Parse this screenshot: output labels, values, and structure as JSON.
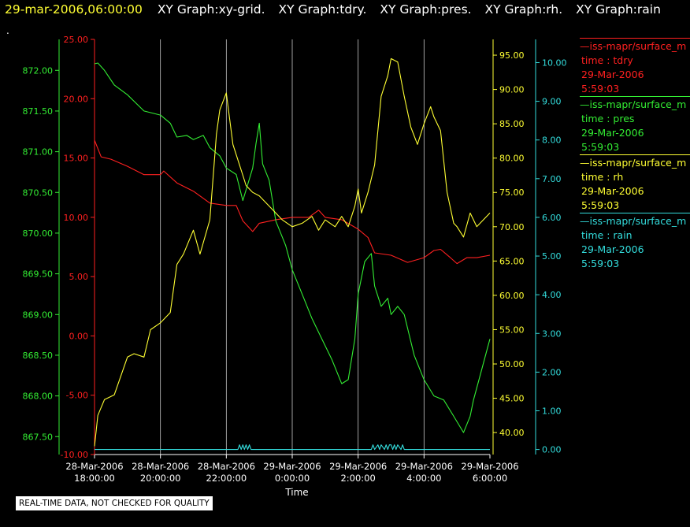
{
  "header": {
    "timestamp": "29-mar-2006,06:00:00",
    "graphs": [
      "XY Graph:xy-grid.",
      "XY Graph:tdry.",
      "XY Graph:pres.",
      "XY Graph:rh.",
      "XY Graph:rain"
    ]
  },
  "dot": ".",
  "legend": [
    {
      "name": "—iss-mapr/surface_m",
      "var": "time : tdry",
      "date": "29-Mar-2006",
      "time": "5:59:03",
      "color": "#ff2020"
    },
    {
      "name": "—iss-mapr/surface_m",
      "var": "time : pres",
      "date": "29-Mar-2006",
      "time": "5:59:03",
      "color": "#33ee33"
    },
    {
      "name": "—iss-mapr/surface_m",
      "var": "time : rh",
      "date": "29-Mar-2006",
      "time": "5:59:03",
      "color": "#ffff33"
    },
    {
      "name": "—iss-mapr/surface_m",
      "var": "time : rain",
      "date": "29-Mar-2006",
      "time": "5:59:03",
      "color": "#33dddd"
    }
  ],
  "note": "REAL-TIME DATA, NOT CHECKED FOR QUALITY",
  "chart_data": {
    "type": "line",
    "xlabel": "Time",
    "x_ticks": [
      {
        "l1": "28-Mar-2006",
        "l2": "18:00:00",
        "h": 18
      },
      {
        "l1": "28-Mar-2006",
        "l2": "20:00:00",
        "h": 20
      },
      {
        "l1": "28-Mar-2006",
        "l2": "22:00:00",
        "h": 22
      },
      {
        "l1": "29-Mar-2006",
        "l2": "0:00:00",
        "h": 24
      },
      {
        "l1": "29-Mar-2006",
        "l2": "2:00:00",
        "h": 26
      },
      {
        "l1": "29-Mar-2006",
        "l2": "4:00:00",
        "h": 28
      },
      {
        "l1": "29-Mar-2006",
        "l2": "6:00:00",
        "h": 30
      }
    ],
    "xlim_hours": [
      18,
      30
    ],
    "grid": true,
    "axes": {
      "tdry": {
        "color": "#ff2020",
        "ylim": [
          -10,
          25
        ],
        "ticks": [
          "-10.00",
          "-5.00",
          "0.00",
          "5.00",
          "10.00",
          "15.00",
          "20.00",
          "25.00"
        ],
        "tick_values": [
          -10,
          -5,
          0,
          5,
          10,
          15,
          20,
          25
        ]
      },
      "pres": {
        "color": "#33ee33",
        "ylim": [
          867.28,
          872.38
        ],
        "ticks": [
          "867.50",
          "868.00",
          "868.50",
          "869.00",
          "869.50",
          "870.00",
          "870.50",
          "871.00",
          "871.50",
          "872.00"
        ],
        "tick_values": [
          867.5,
          868,
          868.5,
          869,
          869.5,
          870,
          870.5,
          871,
          871.5,
          872
        ]
      },
      "rh": {
        "color": "#ffff33",
        "ylim": [
          36.8,
          97.3
        ],
        "ticks": [
          "40.00",
          "45.00",
          "50.00",
          "55.00",
          "60.00",
          "65.00",
          "70.00",
          "75.00",
          "80.00",
          "85.00",
          "90.00",
          "95.00"
        ],
        "tick_values": [
          40,
          45,
          50,
          55,
          60,
          65,
          70,
          75,
          80,
          85,
          90,
          95
        ]
      },
      "rain": {
        "color": "#33dddd",
        "ylim": [
          -0.13,
          10.6
        ],
        "ticks": [
          "0.00",
          "1.00",
          "2.00",
          "3.00",
          "4.00",
          "5.00",
          "6.00",
          "7.00",
          "8.00",
          "9.00",
          "10.00"
        ],
        "tick_values": [
          0,
          1,
          2,
          3,
          4,
          5,
          6,
          7,
          8,
          9,
          10
        ]
      }
    },
    "series": [
      {
        "name": "tdry",
        "axis": "tdry",
        "x": [
          18.0,
          18.2,
          18.5,
          19.0,
          19.5,
          20.0,
          20.1,
          20.5,
          21.0,
          21.5,
          22.0,
          22.3,
          22.5,
          22.8,
          23.0,
          23.5,
          24.0,
          24.5,
          24.8,
          25.0,
          25.5,
          26.0,
          26.3,
          26.5,
          27.0,
          27.5,
          28.0,
          28.3,
          28.5,
          28.8,
          29.0,
          29.3,
          29.6,
          30.0
        ],
        "y": [
          16.5,
          15.1,
          14.9,
          14.3,
          13.6,
          13.6,
          13.9,
          12.9,
          12.2,
          11.2,
          11.0,
          11.0,
          9.7,
          8.8,
          9.5,
          9.8,
          10.0,
          10.0,
          10.6,
          10.0,
          9.8,
          9.0,
          8.3,
          7.0,
          6.8,
          6.2,
          6.6,
          7.2,
          7.3,
          6.6,
          6.1,
          6.6,
          6.6,
          6.8
        ]
      },
      {
        "name": "pres",
        "axis": "pres",
        "x": [
          18.0,
          18.1,
          18.3,
          18.6,
          19.0,
          19.5,
          20.0,
          20.3,
          20.5,
          20.8,
          21.0,
          21.3,
          21.5,
          21.8,
          22.0,
          22.3,
          22.5,
          22.8,
          22.9,
          23.0,
          23.1,
          23.3,
          23.5,
          23.8,
          24.0,
          24.3,
          24.6,
          24.9,
          25.2,
          25.5,
          25.7,
          25.9,
          26.0,
          26.2,
          26.4,
          26.5,
          26.7,
          26.9,
          27.0,
          27.2,
          27.4,
          27.7,
          28.0,
          28.3,
          28.6,
          28.9,
          29.2,
          29.4,
          29.5,
          29.7,
          29.9,
          30.0
        ],
        "y": [
          872.08,
          872.09,
          872.0,
          871.82,
          871.7,
          871.5,
          871.45,
          871.35,
          871.18,
          871.2,
          871.15,
          871.2,
          871.05,
          870.95,
          870.8,
          870.72,
          870.4,
          870.8,
          871.1,
          871.35,
          870.85,
          870.65,
          870.15,
          869.85,
          869.55,
          869.25,
          868.95,
          868.7,
          868.45,
          868.15,
          868.2,
          868.7,
          869.25,
          869.65,
          869.75,
          869.35,
          869.1,
          869.2,
          869.0,
          869.1,
          869.0,
          868.5,
          868.2,
          868.0,
          867.95,
          867.75,
          867.55,
          867.75,
          867.95,
          868.25,
          868.55,
          868.7
        ]
      },
      {
        "name": "rh",
        "axis": "rh",
        "x": [
          18.0,
          18.1,
          18.3,
          18.6,
          19.0,
          19.2,
          19.5,
          19.7,
          20.0,
          20.3,
          20.5,
          20.7,
          21.0,
          21.2,
          21.5,
          21.7,
          21.8,
          22.0,
          22.2,
          22.4,
          22.5,
          22.6,
          22.8,
          23.0,
          23.2,
          23.4,
          23.7,
          24.0,
          24.3,
          24.6,
          24.8,
          25.0,
          25.3,
          25.5,
          25.7,
          25.9,
          26.0,
          26.1,
          26.3,
          26.5,
          26.7,
          26.9,
          27.0,
          27.2,
          27.4,
          27.6,
          27.8,
          28.0,
          28.2,
          28.3,
          28.5,
          28.7,
          28.9,
          29.0,
          29.2,
          29.4,
          29.6,
          29.8,
          30.0
        ],
        "y": [
          38.0,
          42.5,
          44.8,
          45.5,
          51.0,
          51.5,
          51.0,
          55.0,
          56.0,
          57.5,
          64.5,
          66.0,
          69.5,
          66.0,
          71.0,
          83.5,
          87.0,
          89.5,
          82.0,
          79.0,
          77.5,
          76.0,
          75.0,
          74.5,
          73.5,
          72.5,
          71.0,
          70.0,
          70.5,
          71.5,
          69.5,
          71.0,
          70.0,
          71.5,
          70.0,
          73.0,
          75.5,
          72.0,
          75.0,
          79.0,
          89.0,
          92.0,
          94.5,
          94.0,
          89.0,
          84.5,
          82.0,
          85.0,
          87.5,
          86.0,
          84.0,
          75.0,
          70.5,
          70.0,
          68.5,
          72.0,
          70.0,
          71.0,
          72.0
        ]
      },
      {
        "name": "rain",
        "axis": "rain",
        "x": [
          18.0,
          22.35,
          22.4,
          22.45,
          22.5,
          22.55,
          22.6,
          22.65,
          22.7,
          22.75,
          22.8,
          26.4,
          26.45,
          26.5,
          26.6,
          26.65,
          26.7,
          26.8,
          26.85,
          26.9,
          26.95,
          27.0,
          27.05,
          27.1,
          27.15,
          27.2,
          27.3,
          27.35,
          27.4,
          27.5,
          30.0
        ],
        "y": [
          0.0,
          0.0,
          0.12,
          0.0,
          0.12,
          0.0,
          0.12,
          0.0,
          0.12,
          0.0,
          0.0,
          0.0,
          0.12,
          0.0,
          0.12,
          0.0,
          0.12,
          0.0,
          0.12,
          0.0,
          0.12,
          0.12,
          0.0,
          0.12,
          0.0,
          0.12,
          0.0,
          0.12,
          0.0,
          0.0,
          0.0
        ]
      }
    ]
  }
}
